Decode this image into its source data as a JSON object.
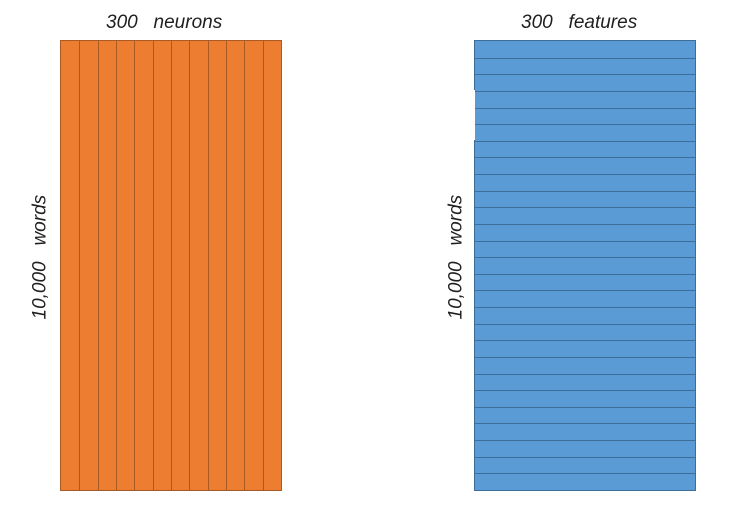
{
  "left_matrix": {
    "top_label": "300   neurons",
    "side_label": "10,000   words",
    "color": "#ed7d31",
    "stripe_count": 12
  },
  "right_matrix": {
    "top_label": "300   features",
    "side_label": "10,000   words",
    "color": "#5b9bd5",
    "stripe_count": 27
  }
}
